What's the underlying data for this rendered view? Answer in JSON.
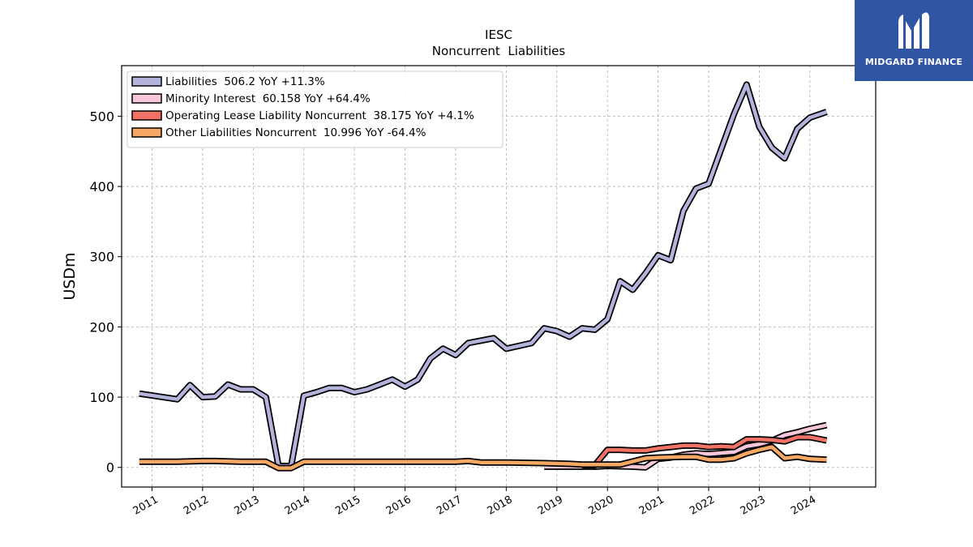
{
  "chart_data": {
    "type": "line",
    "title": "IESC",
    "subtitle": "Noncurrent  Liabilities",
    "xlabel": "",
    "ylabel": "USDm",
    "xlim": [
      2010.4,
      2025.3
    ],
    "ylim": [
      -28,
      572
    ],
    "x_ticks": [
      "2011",
      "2012",
      "2013",
      "2014",
      "2015",
      "2016",
      "2017",
      "2018",
      "2019",
      "2020",
      "2021",
      "2022",
      "2023",
      "2024"
    ],
    "y_ticks": [
      0,
      100,
      200,
      300,
      400,
      500
    ],
    "grid": true,
    "legend_position": "top-left",
    "series": [
      {
        "name": "Liabilities",
        "legend_label": "Liabilities  506.2 YoY +11.3%",
        "color": "#b3b3dc",
        "points": [
          [
            2010.75,
            105
          ],
          [
            2011.5,
            97
          ],
          [
            2011.75,
            117
          ],
          [
            2012.0,
            100
          ],
          [
            2012.25,
            101
          ],
          [
            2012.5,
            118
          ],
          [
            2012.75,
            111
          ],
          [
            2013.0,
            111
          ],
          [
            2013.25,
            100
          ],
          [
            2013.5,
            2
          ],
          [
            2013.75,
            2
          ],
          [
            2014.0,
            102
          ],
          [
            2014.25,
            107
          ],
          [
            2014.5,
            113
          ],
          [
            2014.75,
            113
          ],
          [
            2015.0,
            107
          ],
          [
            2015.25,
            111
          ],
          [
            2015.5,
            118
          ],
          [
            2015.75,
            125
          ],
          [
            2016.0,
            115
          ],
          [
            2016.25,
            125
          ],
          [
            2016.5,
            155
          ],
          [
            2016.75,
            169
          ],
          [
            2017.0,
            160
          ],
          [
            2017.25,
            177
          ],
          [
            2017.75,
            184
          ],
          [
            2018.0,
            169
          ],
          [
            2018.5,
            177
          ],
          [
            2018.75,
            198
          ],
          [
            2019.0,
            194
          ],
          [
            2019.25,
            186
          ],
          [
            2019.5,
            198
          ],
          [
            2019.75,
            196
          ],
          [
            2020.0,
            211
          ],
          [
            2020.25,
            265
          ],
          [
            2020.5,
            253
          ],
          [
            2020.75,
            276
          ],
          [
            2021.0,
            302
          ],
          [
            2021.25,
            295
          ],
          [
            2021.5,
            365
          ],
          [
            2021.75,
            397
          ],
          [
            2022.0,
            404
          ],
          [
            2022.5,
            503
          ],
          [
            2022.75,
            545
          ],
          [
            2023.0,
            485
          ],
          [
            2023.25,
            455
          ],
          [
            2023.5,
            440
          ],
          [
            2023.75,
            482
          ],
          [
            2024.0,
            498
          ],
          [
            2024.33,
            506.2
          ]
        ]
      },
      {
        "name": "Minority Interest",
        "legend_label": "Minority Interest  60.158 YoY +64.4%",
        "color": "#f6c6da",
        "points": [
          [
            2018.75,
            1
          ],
          [
            2019.75,
            1
          ],
          [
            2020.0,
            2
          ],
          [
            2020.5,
            1
          ],
          [
            2020.75,
            0
          ],
          [
            2021.0,
            12
          ],
          [
            2021.25,
            14
          ],
          [
            2021.5,
            18
          ],
          [
            2021.75,
            20
          ],
          [
            2022.0,
            19
          ],
          [
            2022.5,
            22
          ],
          [
            2022.75,
            30
          ],
          [
            2023.0,
            33
          ],
          [
            2023.25,
            38
          ],
          [
            2023.5,
            46
          ],
          [
            2023.75,
            50
          ],
          [
            2024.0,
            55
          ],
          [
            2024.33,
            60.158
          ]
        ]
      },
      {
        "name": "Operating Lease Liability Noncurrent",
        "legend_label": "Operating Lease Liability Noncurrent  38.175 YoY +4.1%",
        "color": "#f07166",
        "points": [
          [
            2019.5,
            3
          ],
          [
            2019.75,
            3
          ],
          [
            2020.0,
            25
          ],
          [
            2020.25,
            25
          ],
          [
            2020.5,
            24
          ],
          [
            2020.75,
            24
          ],
          [
            2021.0,
            27
          ],
          [
            2021.25,
            29
          ],
          [
            2021.5,
            31
          ],
          [
            2021.75,
            31
          ],
          [
            2022.0,
            29
          ],
          [
            2022.25,
            30
          ],
          [
            2022.5,
            29
          ],
          [
            2022.75,
            40
          ],
          [
            2023.0,
            40
          ],
          [
            2023.25,
            39
          ],
          [
            2023.5,
            37
          ],
          [
            2023.75,
            43
          ],
          [
            2024.0,
            43
          ],
          [
            2024.33,
            38.175
          ]
        ]
      },
      {
        "name": "Other Liabilities Noncurrent",
        "legend_label": "Other Liabilities Noncurrent  10.996 YoY -64.4%",
        "color": "#f5a864",
        "points": [
          [
            2010.75,
            8
          ],
          [
            2011.5,
            8
          ],
          [
            2012.0,
            9
          ],
          [
            2012.25,
            9
          ],
          [
            2012.75,
            8
          ],
          [
            2013.25,
            8
          ],
          [
            2013.5,
            -1
          ],
          [
            2013.75,
            -1
          ],
          [
            2014.0,
            8
          ],
          [
            2015.5,
            8
          ],
          [
            2017.0,
            8
          ],
          [
            2017.25,
            9
          ],
          [
            2017.5,
            7
          ],
          [
            2018.0,
            7
          ],
          [
            2018.75,
            6
          ],
          [
            2019.25,
            5
          ],
          [
            2019.5,
            4
          ],
          [
            2020.25,
            4
          ],
          [
            2020.75,
            13
          ],
          [
            2021.0,
            14
          ],
          [
            2021.5,
            15
          ],
          [
            2021.75,
            15
          ],
          [
            2022.0,
            11
          ],
          [
            2022.25,
            11
          ],
          [
            2022.5,
            13
          ],
          [
            2022.75,
            20
          ],
          [
            2023.0,
            25
          ],
          [
            2023.25,
            29
          ],
          [
            2023.5,
            13
          ],
          [
            2023.75,
            15
          ],
          [
            2024.0,
            12
          ],
          [
            2024.33,
            10.996
          ]
        ]
      }
    ]
  },
  "logo": {
    "text": "MIDGARD FINANCE",
    "icon": "midgard-m-logo-icon"
  }
}
